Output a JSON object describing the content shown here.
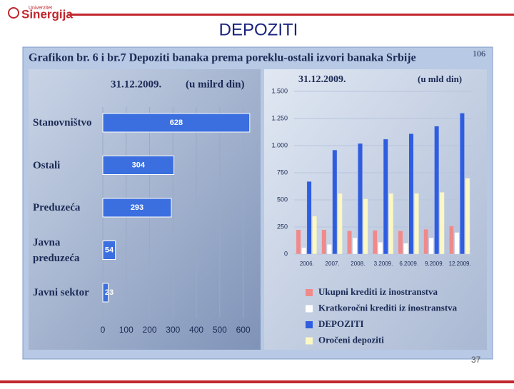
{
  "header": {
    "logo_top": "Univerzitet",
    "logo": "Sinergija",
    "title": "DEPOZITI"
  },
  "banner": {
    "title": "Grafikon br. 6 i br.7  Depoziti banaka prema poreklu-ostali izvori banaka Srbije",
    "superscript": "106"
  },
  "page_number": "37",
  "chart_data": [
    {
      "type": "hbar",
      "title": "31.12.2009.",
      "unit": "(u milrd din)",
      "categories": [
        "Stanovništvo",
        "Ostali",
        "Preduzeća",
        "Javna preduzeća",
        "Javni sektor"
      ],
      "values": [
        628,
        304,
        293,
        54,
        23
      ],
      "color": "#3b6fe0",
      "xlim": [
        0,
        650
      ],
      "xticks": [
        0,
        100,
        200,
        300,
        400,
        500,
        600
      ],
      "grid": true
    },
    {
      "type": "bar",
      "title": "31.12.2009.",
      "unit": "(u mld din)",
      "categories": [
        "2006.",
        "2007.",
        "2008.",
        "3.2009.",
        "6.2009.",
        "9.2009.",
        "12.2009."
      ],
      "series": [
        {
          "name": "Ukupni krediti iz inostranstva",
          "color": "#f08a8a",
          "values": [
            225,
            225,
            215,
            220,
            215,
            230,
            260
          ]
        },
        {
          "name": "Kratkoročni krediti iz inostranstva",
          "color": "#ffffff",
          "values": [
            60,
            90,
            150,
            110,
            100,
            150,
            200
          ]
        },
        {
          "name": "DEPOZITI",
          "color": "#2f5de0",
          "values": [
            670,
            960,
            1020,
            1060,
            1110,
            1180,
            1300
          ]
        },
        {
          "name": "Oročeni depoziti",
          "color": "#fbf8c4",
          "values": [
            350,
            560,
            510,
            560,
            560,
            570,
            700
          ]
        }
      ],
      "ylim": [
        0,
        1500
      ],
      "yticks": [
        0,
        250,
        500,
        750,
        {
          "value": 1000,
          "label": "1.000"
        },
        {
          "value": 1250,
          "label": "1.250"
        },
        {
          "value": 1500,
          "label": "1.500"
        }
      ],
      "grid": true
    }
  ]
}
